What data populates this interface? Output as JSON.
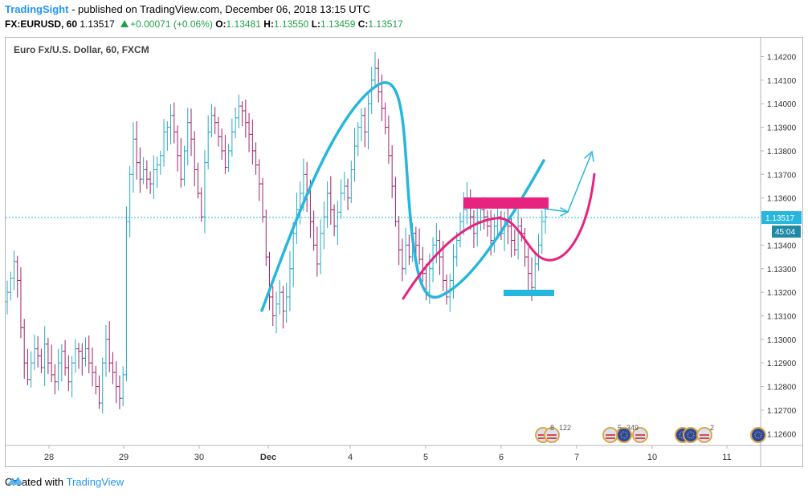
{
  "header": {
    "author": "TradingSight",
    "published": "- published on TradingView.com, December 06, 2018 13:15 UTC"
  },
  "ohlc": {
    "symbol": "FX:EURUSD, 60",
    "price": "1.13517",
    "change": "+0.00071 (+0.06%)",
    "o_label": "O:",
    "o": "1.13481",
    "h_label": "H:",
    "h": "1.13550",
    "l_label": "L:",
    "l": "1.13459",
    "c_label": "C:",
    "c": "1.13517"
  },
  "footer": {
    "created": "Created with",
    "brand": "TradingView"
  },
  "colors": {
    "up": "#26a9c4",
    "down": "#a0226a",
    "accent_blue": "#27b6dc",
    "accent_pink": "#e8237f",
    "axis": "#b2b5be"
  },
  "chart_data": {
    "type": "ohlc-bar",
    "title": "Euro Fx/U.S. Dollar, 60, FXCM",
    "ylim": [
      1.1255,
      1.1428
    ],
    "y_ticks": [
      "1.14200",
      "1.14100",
      "1.14000",
      "1.13900",
      "1.13800",
      "1.13700",
      "1.13600",
      "1.13400",
      "1.13300",
      "1.13200",
      "1.13100",
      "1.13000",
      "1.12900",
      "1.12800",
      "1.12700",
      "1.12600"
    ],
    "x_ticks": [
      "28",
      "29",
      "30",
      "Dec",
      "4",
      "5",
      "6",
      "7",
      "10",
      "11"
    ],
    "last_price": "1.13517",
    "countdown": "45:04",
    "events": [
      {
        "label": "8"
      },
      {
        "label": "122"
      },
      {
        "label": "5"
      },
      {
        "label": "349"
      },
      {
        "label": "2"
      }
    ],
    "close_path": [
      1.132,
      1.1326,
      1.1333,
      1.1325,
      1.1305,
      1.129,
      1.1283,
      1.129,
      1.1296,
      1.1293,
      1.1288,
      1.1298,
      1.129,
      1.1285,
      1.1282,
      1.129,
      1.1295,
      1.1288,
      1.1282,
      1.129,
      1.1296,
      1.1295,
      1.1292,
      1.1296,
      1.129,
      1.1286,
      1.128,
      1.1273,
      1.129,
      1.13,
      1.129,
      1.1286,
      1.128,
      1.1275,
      1.1285,
      1.135,
      1.137,
      1.1385,
      1.1375,
      1.1368,
      1.1372,
      1.1368,
      1.1366,
      1.1372,
      1.1374,
      1.1378,
      1.1388,
      1.139,
      1.1395,
      1.1388,
      1.1378,
      1.1368,
      1.138,
      1.1392,
      1.1385,
      1.1372,
      1.1362,
      1.1352,
      1.1375,
      1.1388,
      1.1395,
      1.1392,
      1.1386,
      1.138,
      1.1373,
      1.138,
      1.1388,
      1.1394,
      1.1399,
      1.1397,
      1.1392,
      1.1387,
      1.138,
      1.1374,
      1.1366,
      1.1352,
      1.1335,
      1.1318,
      1.131,
      1.1315,
      1.132,
      1.1312,
      1.1318,
      1.133,
      1.1345,
      1.1355,
      1.1362,
      1.137,
      1.1362,
      1.135,
      1.134,
      1.1332,
      1.1345,
      1.1352,
      1.1362,
      1.1355,
      1.1348,
      1.1354,
      1.1362,
      1.1365,
      1.136,
      1.1372,
      1.1382,
      1.139,
      1.1395,
      1.1388,
      1.14,
      1.141,
      1.1415,
      1.1405,
      1.1398,
      1.139,
      1.1378,
      1.1365,
      1.135,
      1.1338,
      1.133,
      1.134,
      1.1335,
      1.1345,
      1.134,
      1.1334,
      1.1328,
      1.132,
      1.133,
      1.134,
      1.1342,
      1.1335,
      1.1325,
      1.1318,
      1.1325,
      1.1335,
      1.1342,
      1.135,
      1.1355,
      1.136,
      1.1352,
      1.1345,
      1.135,
      1.1355,
      1.1352,
      1.1348,
      1.1342,
      1.1348,
      1.1352,
      1.1345,
      1.135,
      1.1348,
      1.1342,
      1.1338,
      1.1348,
      1.1345,
      1.1335,
      1.1328,
      1.1322,
      1.1332,
      1.134,
      1.135,
      1.1352
    ]
  }
}
